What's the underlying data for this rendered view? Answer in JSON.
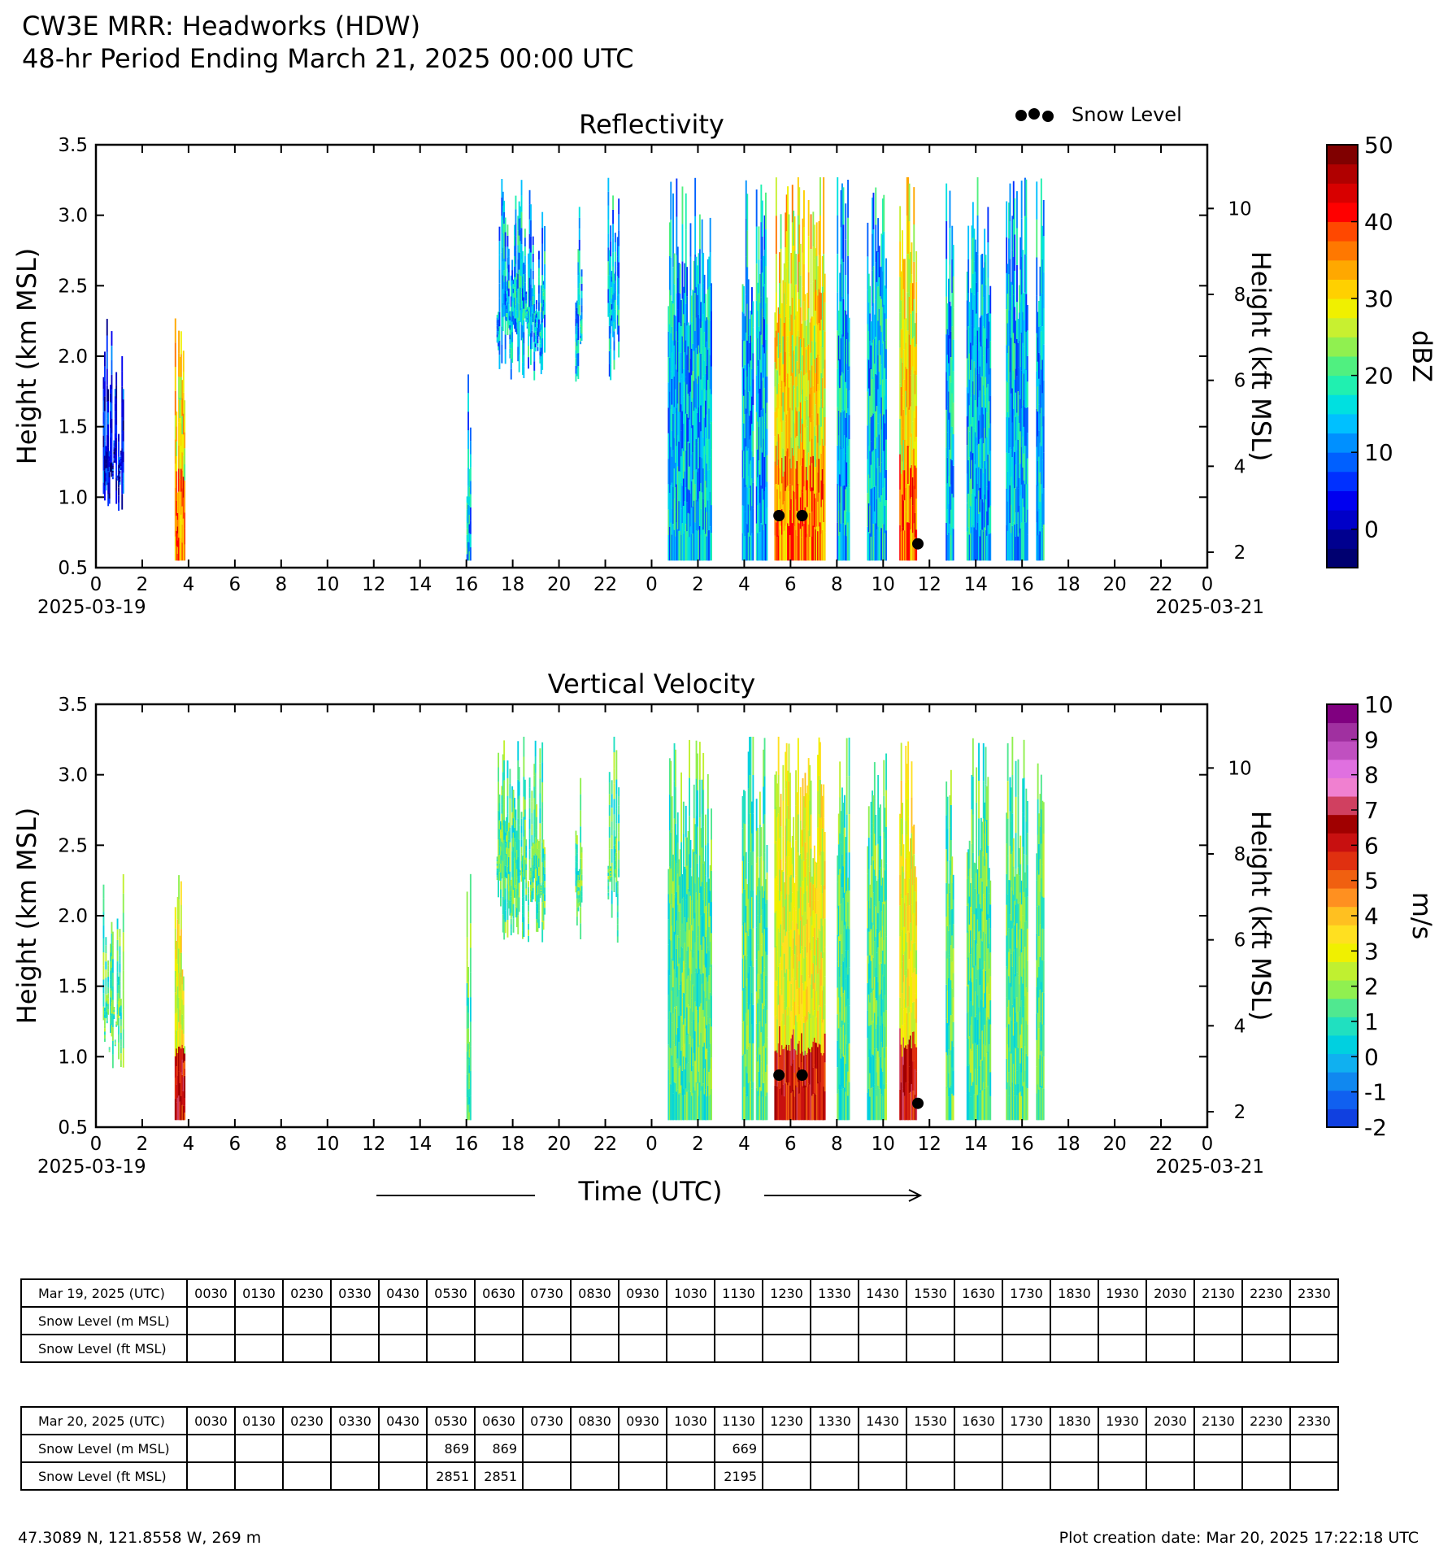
{
  "header": {
    "title": "CW3E MRR: Headworks (HDW)",
    "subtitle": "48-hr Period Ending March 21, 2025 00:00 UTC"
  },
  "legend": {
    "symbol": "●●●",
    "label": "Snow Level"
  },
  "x_axis": {
    "label": "Time (UTC)",
    "tick_labels": [
      "0",
      "2",
      "4",
      "6",
      "8",
      "10",
      "12",
      "14",
      "16",
      "18",
      "20",
      "22",
      "0",
      "2",
      "4",
      "6",
      "8",
      "10",
      "12",
      "14",
      "16",
      "18",
      "20",
      "22",
      "0"
    ],
    "start_date": "2025-03-19",
    "end_date": "2025-03-21"
  },
  "chart_data": [
    {
      "type": "heatmap",
      "title": "Reflectivity",
      "ylabel": "Height (km MSL)",
      "y2label": "Height (kft MSL)",
      "ylim": [
        0.5,
        3.5
      ],
      "yticks": [
        "0.5",
        "1.0",
        "1.5",
        "2.0",
        "2.5",
        "3.0",
        "3.5"
      ],
      "y2ticks": [
        "2",
        "4",
        "6",
        "8",
        "10"
      ],
      "xlim_hours": [
        0,
        48
      ],
      "colorbar": {
        "label": "dBZ",
        "ticks": [
          "0",
          "10",
          "20",
          "30",
          "40",
          "50"
        ],
        "range": [
          -5,
          50
        ]
      },
      "precip_periods_hours": [
        [
          0.3,
          1.2
        ],
        [
          3.4,
          3.8
        ],
        [
          16.0,
          16.2
        ],
        [
          17.3,
          19.4
        ],
        [
          20.7,
          21.0
        ],
        [
          22.1,
          22.6
        ],
        [
          24.7,
          26.6
        ],
        [
          27.9,
          28.4
        ],
        [
          28.5,
          29.0
        ],
        [
          29.3,
          31.5
        ],
        [
          32.0,
          32.5
        ],
        [
          33.3,
          34.1
        ],
        [
          34.7,
          35.4
        ],
        [
          36.7,
          37.0
        ],
        [
          37.6,
          38.6
        ],
        [
          39.3,
          40.2
        ],
        [
          40.6,
          40.9
        ]
      ],
      "snow_level_points": [
        {
          "time": "2025-03-20 05:30",
          "height_km": 0.869
        },
        {
          "time": "2025-03-20 06:30",
          "height_km": 0.869
        },
        {
          "time": "2025-03-20 11:30",
          "height_km": 0.669
        }
      ]
    },
    {
      "type": "heatmap",
      "title": "Vertical Velocity",
      "ylabel": "Height (km MSL)",
      "y2label": "Height (kft MSL)",
      "ylim": [
        0.5,
        3.5
      ],
      "yticks": [
        "0.5",
        "1.0",
        "1.5",
        "2.0",
        "2.5",
        "3.0",
        "3.5"
      ],
      "y2ticks": [
        "2",
        "4",
        "6",
        "8",
        "10"
      ],
      "xlim_hours": [
        0,
        48
      ],
      "colorbar": {
        "label": "m/s",
        "ticks": [
          "-2",
          "-1",
          "0",
          "1",
          "2",
          "3",
          "4",
          "5",
          "6",
          "7",
          "8",
          "9",
          "10"
        ],
        "range": [
          -2,
          10
        ]
      },
      "precip_periods_hours": [
        [
          0.3,
          1.2
        ],
        [
          3.4,
          3.8
        ],
        [
          16.0,
          16.2
        ],
        [
          17.3,
          19.4
        ],
        [
          20.7,
          21.0
        ],
        [
          22.1,
          22.6
        ],
        [
          24.7,
          26.6
        ],
        [
          27.9,
          28.4
        ],
        [
          28.5,
          29.0
        ],
        [
          29.3,
          31.5
        ],
        [
          32.0,
          32.5
        ],
        [
          33.3,
          34.1
        ],
        [
          34.7,
          35.4
        ],
        [
          36.7,
          37.0
        ],
        [
          37.6,
          38.6
        ],
        [
          39.3,
          40.2
        ],
        [
          40.6,
          40.9
        ]
      ],
      "snow_level_points": [
        {
          "time": "2025-03-20 05:30",
          "height_km": 0.869
        },
        {
          "time": "2025-03-20 06:30",
          "height_km": 0.869
        },
        {
          "time": "2025-03-20 11:30",
          "height_km": 0.669
        }
      ]
    }
  ],
  "tables": [
    {
      "date_label": "Mar 19, 2025 (UTC)",
      "row_m_label": "Snow Level (m MSL)",
      "row_ft_label": "Snow Level (ft MSL)",
      "times": [
        "0030",
        "0130",
        "0230",
        "0330",
        "0430",
        "0530",
        "0630",
        "0730",
        "0830",
        "0930",
        "1030",
        "1130",
        "1230",
        "1330",
        "1430",
        "1530",
        "1630",
        "1730",
        "1830",
        "1930",
        "2030",
        "2130",
        "2230",
        "2330"
      ],
      "m": [
        "",
        "",
        "",
        "",
        "",
        "",
        "",
        "",
        "",
        "",
        "",
        "",
        "",
        "",
        "",
        "",
        "",
        "",
        "",
        "",
        "",
        "",
        "",
        ""
      ],
      "ft": [
        "",
        "",
        "",
        "",
        "",
        "",
        "",
        "",
        "",
        "",
        "",
        "",
        "",
        "",
        "",
        "",
        "",
        "",
        "",
        "",
        "",
        "",
        "",
        ""
      ]
    },
    {
      "date_label": "Mar 20, 2025 (UTC)",
      "row_m_label": "Snow Level (m MSL)",
      "row_ft_label": "Snow Level (ft MSL)",
      "times": [
        "0030",
        "0130",
        "0230",
        "0330",
        "0430",
        "0530",
        "0630",
        "0730",
        "0830",
        "0930",
        "1030",
        "1130",
        "1230",
        "1330",
        "1430",
        "1530",
        "1630",
        "1730",
        "1830",
        "1930",
        "2030",
        "2130",
        "2230",
        "2330"
      ],
      "m": [
        "",
        "",
        "",
        "",
        "",
        "869",
        "869",
        "",
        "",
        "",
        "",
        "669",
        "",
        "",
        "",
        "",
        "",
        "",
        "",
        "",
        "",
        "",
        "",
        ""
      ],
      "ft": [
        "",
        "",
        "",
        "",
        "",
        "2851",
        "2851",
        "",
        "",
        "",
        "",
        "2195",
        "",
        "",
        "",
        "",
        "",
        "",
        "",
        "",
        "",
        "",
        "",
        ""
      ]
    }
  ],
  "footer": {
    "location": "47.3089 N, 121.8558 W, 269 m",
    "created": "Plot creation date: Mar 20, 2025 17:22:18 UTC"
  }
}
